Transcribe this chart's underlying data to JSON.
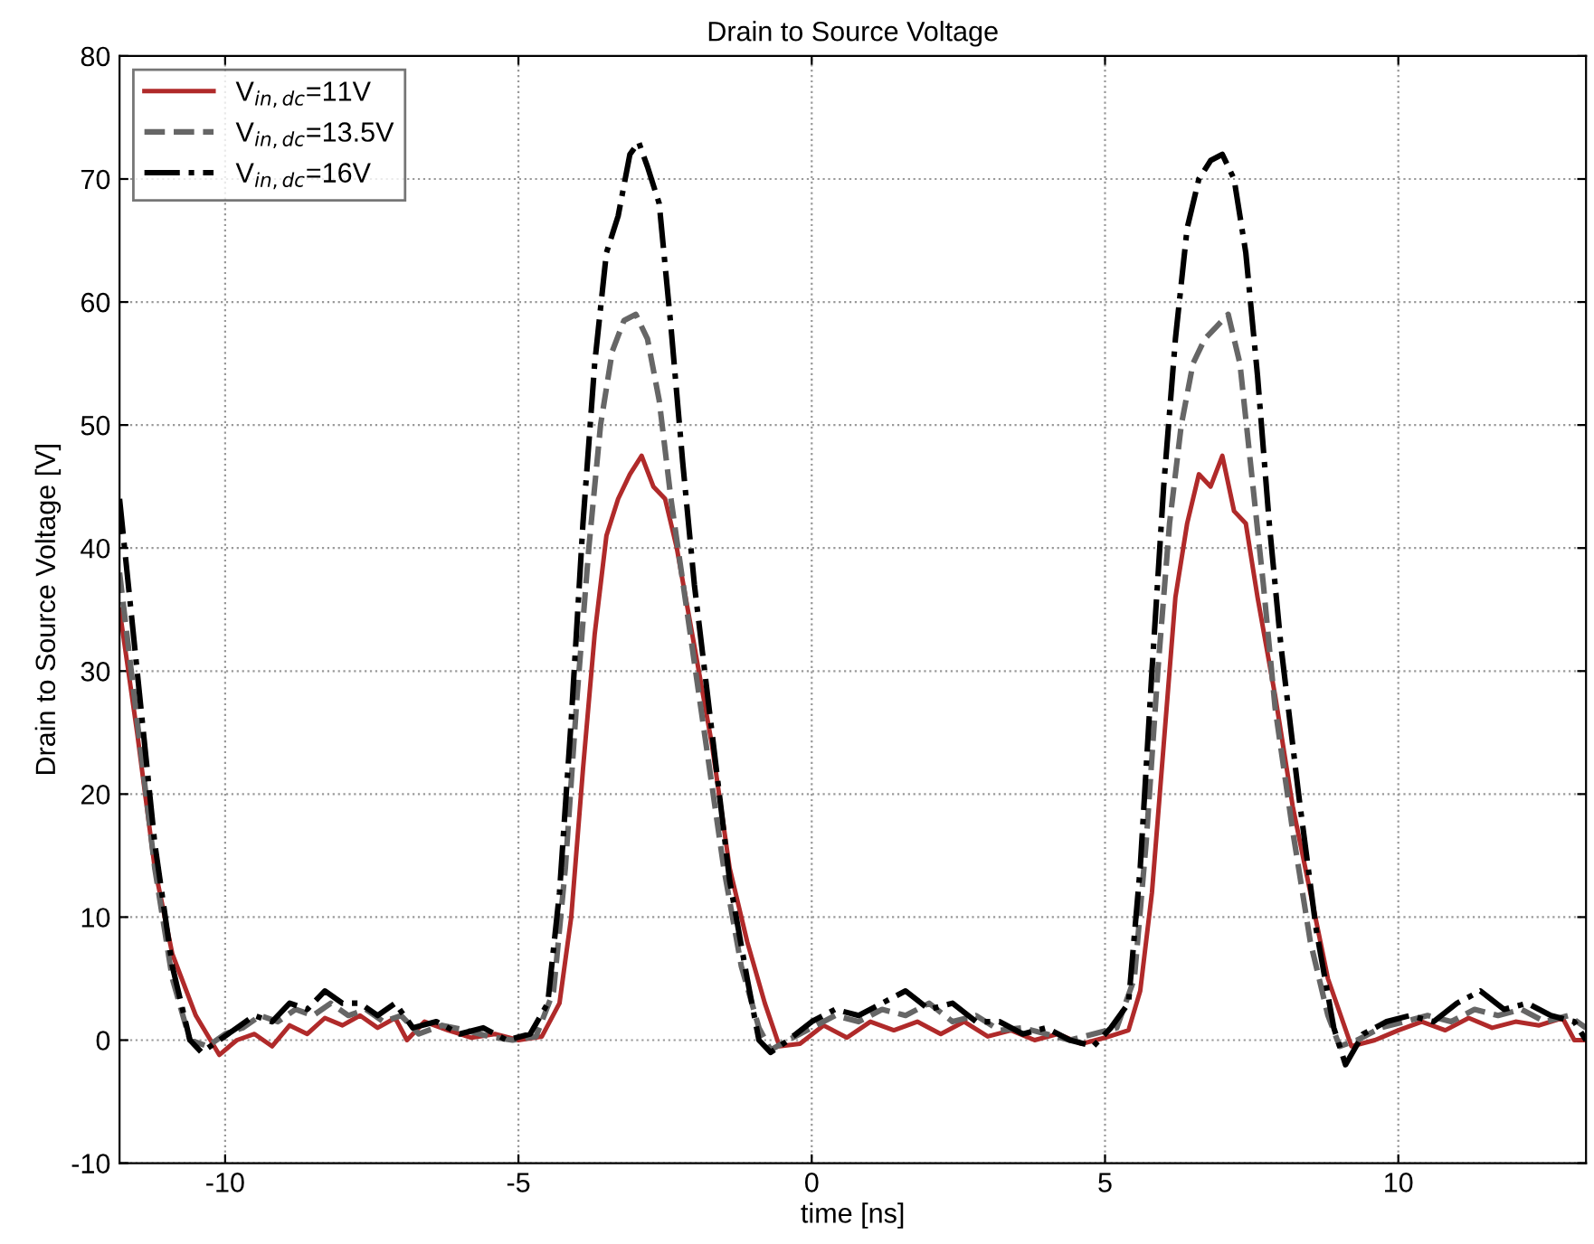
{
  "chart_data": {
    "type": "line",
    "title": "Drain to Source Voltage",
    "xlabel": "time [ns]",
    "ylabel": "Drain to Source Voltage [V]",
    "xlim": [
      -11.8,
      13.2
    ],
    "xticks": [
      -10,
      -5,
      0,
      5,
      10
    ],
    "ylim": [
      -10,
      80
    ],
    "yticks": [
      -10,
      0,
      10,
      20,
      30,
      40,
      50,
      60,
      70,
      80
    ],
    "grid": true,
    "legend": "top left",
    "marker": "none",
    "series": [
      {
        "name": "V$_{in,dc}$=11V",
        "color": "#b02a2a",
        "line_style": "solid",
        "x": [
          -11.8,
          -11.5,
          -11.2,
          -10.9,
          -10.5,
          -10.1,
          -9.8,
          -9.5,
          -9.2,
          -8.9,
          -8.6,
          -8.3,
          -8.0,
          -7.7,
          -7.4,
          -7.1,
          -6.9,
          -6.6,
          -6.2,
          -5.8,
          -5.4,
          -5.0,
          -4.6,
          -4.3,
          -4.1,
          -3.9,
          -3.7,
          -3.5,
          -3.3,
          -3.1,
          -2.9,
          -2.7,
          -2.5,
          -2.3,
          -2.0,
          -1.7,
          -1.4,
          -1.1,
          -0.8,
          -0.55,
          -0.2,
          0.2,
          0.6,
          1.0,
          1.4,
          1.8,
          2.2,
          2.6,
          3.0,
          3.4,
          3.8,
          4.2,
          4.6,
          5.0,
          5.4,
          5.6,
          5.8,
          6.0,
          6.2,
          6.4,
          6.6,
          6.8,
          7.0,
          7.2,
          7.4,
          7.6,
          7.9,
          8.2,
          8.5,
          8.8,
          9.2,
          9.6,
          10.0,
          10.4,
          10.8,
          11.2,
          11.6,
          12.0,
          12.4,
          12.8,
          13.0,
          13.2
        ],
        "values": [
          35,
          25,
          14,
          7,
          2,
          -1.2,
          0,
          0.5,
          -0.5,
          1.2,
          0.5,
          1.8,
          1.2,
          2,
          1,
          1.8,
          0,
          1.5,
          0.8,
          0.2,
          0.5,
          0,
          0.3,
          3,
          10,
          22,
          33,
          41,
          44,
          46,
          47.5,
          45,
          44,
          40,
          32,
          24,
          14,
          8,
          3,
          -0.5,
          -0.3,
          1.2,
          0.2,
          1.5,
          0.8,
          1.5,
          0.5,
          1.5,
          0.3,
          0.8,
          0,
          0.5,
          -0.3,
          0.2,
          0.8,
          4,
          12,
          24,
          36,
          42,
          46,
          45,
          47.5,
          43,
          42,
          36,
          28,
          19,
          12,
          5,
          -0.5,
          0,
          0.8,
          1.5,
          0.8,
          1.8,
          1,
          1.5,
          1.2,
          1.8,
          0,
          0
        ]
      },
      {
        "name": "V$_{in,dc}$=13.5V",
        "color": "#666666",
        "line_style": "dashed",
        "x": [
          -11.8,
          -11.5,
          -11.2,
          -10.9,
          -10.6,
          -10.3,
          -10.0,
          -9.7,
          -9.4,
          -9.1,
          -8.8,
          -8.5,
          -8.2,
          -7.9,
          -7.6,
          -7.3,
          -7.0,
          -6.7,
          -6.3,
          -5.9,
          -5.5,
          -5.1,
          -4.7,
          -4.4,
          -4.2,
          -4.0,
          -3.8,
          -3.6,
          -3.4,
          -3.2,
          -3.0,
          -2.8,
          -2.6,
          -2.4,
          -2.1,
          -1.8,
          -1.5,
          -1.2,
          -0.9,
          -0.7,
          -0.4,
          0.0,
          0.4,
          0.8,
          1.2,
          1.6,
          2.0,
          2.4,
          2.8,
          3.2,
          3.6,
          4.0,
          4.4,
          4.8,
          5.2,
          5.5,
          5.7,
          5.9,
          6.1,
          6.3,
          6.5,
          6.7,
          6.9,
          7.1,
          7.3,
          7.5,
          7.7,
          7.9,
          8.2,
          8.5,
          8.8,
          9.0,
          9.3,
          9.7,
          10.1,
          10.5,
          10.9,
          11.3,
          11.7,
          12.1,
          12.5,
          12.9,
          13.2
        ],
        "values": [
          38,
          26,
          14,
          5,
          0,
          -0.5,
          0.5,
          1,
          2,
          1.5,
          2.5,
          2,
          3,
          2,
          2.5,
          1.5,
          2,
          0.5,
          1.2,
          0.8,
          0.3,
          0,
          0.3,
          4,
          14,
          28,
          40,
          50,
          56,
          58.5,
          59,
          57,
          52,
          44,
          34,
          24,
          14,
          6,
          1,
          -0.8,
          0,
          1,
          2,
          1.5,
          2.5,
          2,
          3,
          1.5,
          2,
          0.8,
          1,
          0.5,
          0,
          0.5,
          1,
          5,
          16,
          30,
          42,
          50,
          55,
          57,
          58,
          59,
          55,
          46,
          37,
          27,
          17,
          8,
          2,
          -0.5,
          0,
          1,
          1.5,
          2,
          1.5,
          2.5,
          2,
          2.5,
          1.5,
          2,
          1
        ]
      },
      {
        "name": "V$_{in,dc}$=16V",
        "color": "#000000",
        "line_style": "dashdot",
        "x": [
          -11.8,
          -11.5,
          -11.2,
          -10.9,
          -10.6,
          -10.4,
          -10.1,
          -9.8,
          -9.5,
          -9.2,
          -8.9,
          -8.6,
          -8.3,
          -8.0,
          -7.7,
          -7.4,
          -7.1,
          -6.8,
          -6.4,
          -6.0,
          -5.6,
          -5.2,
          -4.8,
          -4.5,
          -4.3,
          -4.1,
          -3.9,
          -3.7,
          -3.5,
          -3.3,
          -3.1,
          -2.95,
          -2.8,
          -2.6,
          -2.4,
          -2.2,
          -2.0,
          -1.7,
          -1.4,
          -1.1,
          -0.9,
          -0.7,
          -0.4,
          0.0,
          0.4,
          0.8,
          1.2,
          1.6,
          2.0,
          2.4,
          2.8,
          3.2,
          3.6,
          4.0,
          4.4,
          4.8,
          5.1,
          5.4,
          5.6,
          5.8,
          6.0,
          6.2,
          6.4,
          6.6,
          6.8,
          7.0,
          7.2,
          7.4,
          7.6,
          7.8,
          8.0,
          8.3,
          8.6,
          8.9,
          9.1,
          9.4,
          9.8,
          10.2,
          10.6,
          11.0,
          11.4,
          11.8,
          12.2,
          12.6,
          13.0,
          13.2
        ],
        "values": [
          44,
          30,
          16,
          6,
          0,
          -1,
          0,
          1,
          2,
          1.5,
          3,
          2.5,
          4,
          3,
          3,
          2,
          3,
          1,
          1.5,
          0.5,
          1,
          0,
          0.5,
          3,
          12,
          26,
          42,
          55,
          64,
          67,
          72,
          73,
          71,
          68,
          58,
          47,
          37,
          25,
          13,
          5,
          0,
          -1,
          0,
          1.5,
          2.5,
          2,
          3,
          4,
          2.5,
          3,
          1.5,
          1.5,
          0.5,
          1,
          0,
          -0.5,
          1,
          3,
          14,
          30,
          45,
          57,
          66,
          70,
          71.5,
          72,
          70,
          64,
          54,
          42,
          32,
          20,
          9,
          1,
          -2,
          0.5,
          1.5,
          2,
          1.5,
          3,
          4,
          2.5,
          3,
          2,
          1.5,
          0
        ]
      }
    ]
  }
}
